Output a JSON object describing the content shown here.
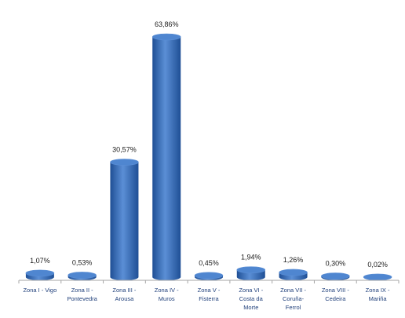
{
  "chart_data": {
    "type": "bar",
    "style": "3d-cylinder",
    "categories": [
      [
        "Zona I - Vigo"
      ],
      [
        "Zona II -",
        "Pontevedra"
      ],
      [
        "Zona III -",
        "Arousa"
      ],
      [
        "Zona IV -",
        "Muros"
      ],
      [
        "Zona V -",
        "Fisterra"
      ],
      [
        "Zona VI -",
        "Costa da",
        "Morte"
      ],
      [
        "Zona VII -",
        "Coruña-",
        "Ferrol"
      ],
      [
        "Zona VIII -",
        "Cedeira"
      ],
      [
        "Zona IX -",
        "Mariña"
      ]
    ],
    "values": [
      1.07,
      0.53,
      30.57,
      63.86,
      0.45,
      1.94,
      1.26,
      0.3,
      0.02
    ],
    "data_labels": [
      "1,07%",
      "0,53%",
      "30,57%",
      "63,86%",
      "0,45%",
      "1,94%",
      "1,26%",
      "0,30%",
      "0,02%"
    ],
    "title": "",
    "xlabel": "",
    "ylabel": "",
    "ylim": [
      0,
      63.86
    ],
    "grid": false,
    "legend": "none",
    "colors": {
      "bar_light": "#5b8fd6",
      "bar_mid": "#3a6fbf",
      "bar_dark": "#1f4f95",
      "bar_top": "#4f86d0",
      "axis": "#a6a6a6",
      "tick_text": "#1f3f7a",
      "label_text": "#1a1a1a"
    }
  }
}
